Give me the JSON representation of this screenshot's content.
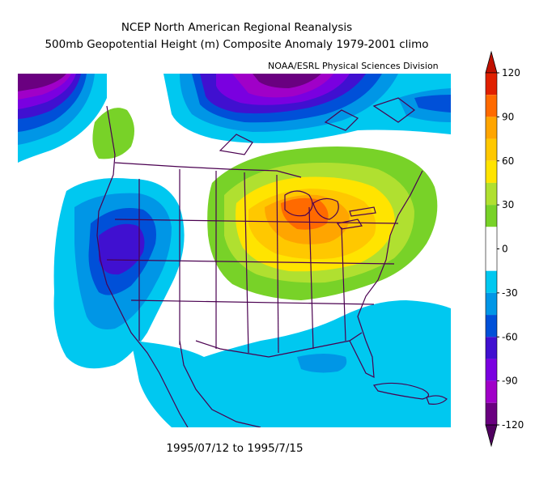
{
  "title_line1": "NCEP North American Regional Reanalysis",
  "title_line2": "500mb Geopotential Height (m) Composite Anomaly 1979-2001 climo",
  "credit": "NOAA/ESRL Physical Sciences Division",
  "date_range": "1995/07/12 to 1995/7/15",
  "colorbar": {
    "labels": [
      "120",
      "90",
      "60",
      "30",
      "0",
      "-30",
      "-60",
      "-90",
      "-120"
    ],
    "levels": [
      {
        "from": 105,
        "to": 120,
        "color": "#e02000"
      },
      {
        "from": 90,
        "to": 105,
        "color": "#ff6a00"
      },
      {
        "from": 75,
        "to": 90,
        "color": "#ffa500"
      },
      {
        "from": 60,
        "to": 75,
        "color": "#ffc800"
      },
      {
        "from": 45,
        "to": 60,
        "color": "#ffe400"
      },
      {
        "from": 30,
        "to": 45,
        "color": "#b0e030"
      },
      {
        "from": 15,
        "to": 30,
        "color": "#78d228"
      },
      {
        "from": 0,
        "to": 15,
        "color": "#ffffff"
      },
      {
        "from": -15,
        "to": 0,
        "color": "#ffffff"
      },
      {
        "from": -30,
        "to": -15,
        "color": "#00c8f0"
      },
      {
        "from": -45,
        "to": -30,
        "color": "#0096e6"
      },
      {
        "from": -60,
        "to": -45,
        "color": "#0050d8"
      },
      {
        "from": -75,
        "to": -60,
        "color": "#4010d0"
      },
      {
        "from": -90,
        "to": -75,
        "color": "#7a00e0"
      },
      {
        "from": -105,
        "to": -90,
        "color": "#a000c8"
      },
      {
        "from": -120,
        "to": -105,
        "color": "#6a0080"
      }
    ],
    "top_arrow_color": "#c01000",
    "bottom_arrow_color": "#500060"
  },
  "map_colors": {
    "land_outline": "#4a0050",
    "positive_30": "#78d228",
    "positive_45": "#b0e030",
    "positive_60": "#ffe400",
    "positive_75": "#ffc800",
    "positive_90": "#ffa500",
    "positive_105": "#ff6a00",
    "negative_15": "#00c8f0",
    "negative_30": "#0096e6",
    "negative_45": "#0050d8",
    "negative_60": "#4010d0",
    "negative_75": "#7a00e0",
    "negative_90": "#a000c8",
    "negative_105": "#6a0080"
  }
}
